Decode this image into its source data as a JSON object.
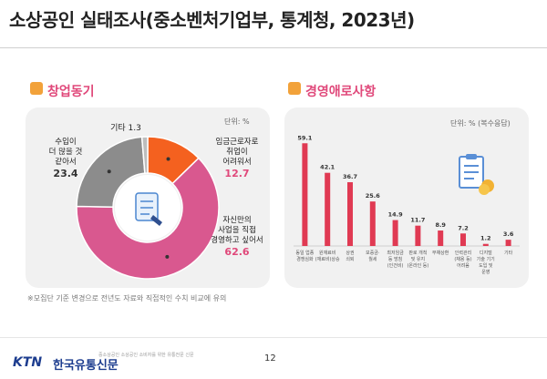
{
  "page": {
    "title": "소상공인 실태조사(중소벤처기업부, 통계청, 2023년)",
    "page_number": "12",
    "footnote": "※모집단 기준 변경으로 전년도 자료와 직접적인 수치 비교에 유의",
    "logo_mark": "KTN",
    "logo_text": "한국유통신문",
    "logo_sub": "중소상공인 소상공인 소비자를 위한 유통전문 신문"
  },
  "chart_data": [
    {
      "type": "pie",
      "title": "창업동기",
      "unit": "단위: %",
      "slices": [
        {
          "label": "임금근로자로 취업이 어려워서",
          "lines": [
            "임금근로자로",
            "취업이",
            "어려워서"
          ],
          "value": 12.7,
          "color": "#f4611f"
        },
        {
          "label": "자신만의 사업을 직접 경영하고 싶어서",
          "lines": [
            "자신만의",
            "사업을 직접",
            "경영하고 싶어서"
          ],
          "value": 62.6,
          "color": "#d9588f"
        },
        {
          "label": "수입이 더 많을 것 같아서",
          "lines": [
            "수입이",
            "더 많을 것",
            "같아서"
          ],
          "value": 23.4,
          "color": "#8c8c8c"
        },
        {
          "label": "기타",
          "lines": [
            "기타"
          ],
          "value": 1.3,
          "color": "#bdbdbd"
        }
      ]
    },
    {
      "type": "bar",
      "title": "경영애로사항",
      "unit": "단위: % (복수응답)",
      "ylim": [
        0,
        65
      ],
      "color": "#e03a53",
      "categories": [
        {
          "lines": [
            "동일 업종",
            "경쟁심화"
          ]
        },
        {
          "lines": [
            "원재료비",
            "(재료비)상승"
          ]
        },
        {
          "lines": [
            "상권",
            "쇠퇴"
          ]
        },
        {
          "lines": [
            "보증금·",
            "월세"
          ]
        },
        {
          "lines": [
            "최저임금",
            "등 방침",
            "(인건비)"
          ]
        },
        {
          "lines": [
            "판로 개척",
            "및 유지",
            "(온라인 등)"
          ]
        },
        {
          "lines": [
            "부채상환"
          ]
        },
        {
          "lines": [
            "인력관리",
            "(채용 등)",
            "어려움"
          ]
        },
        {
          "lines": [
            "디지털",
            "기술 기기",
            "도입 및",
            "운영"
          ]
        },
        {
          "lines": [
            "기타"
          ]
        }
      ],
      "values": [
        59.1,
        42.1,
        36.7,
        25.6,
        14.9,
        11.7,
        8.9,
        7.2,
        1.2,
        3.6
      ]
    }
  ]
}
